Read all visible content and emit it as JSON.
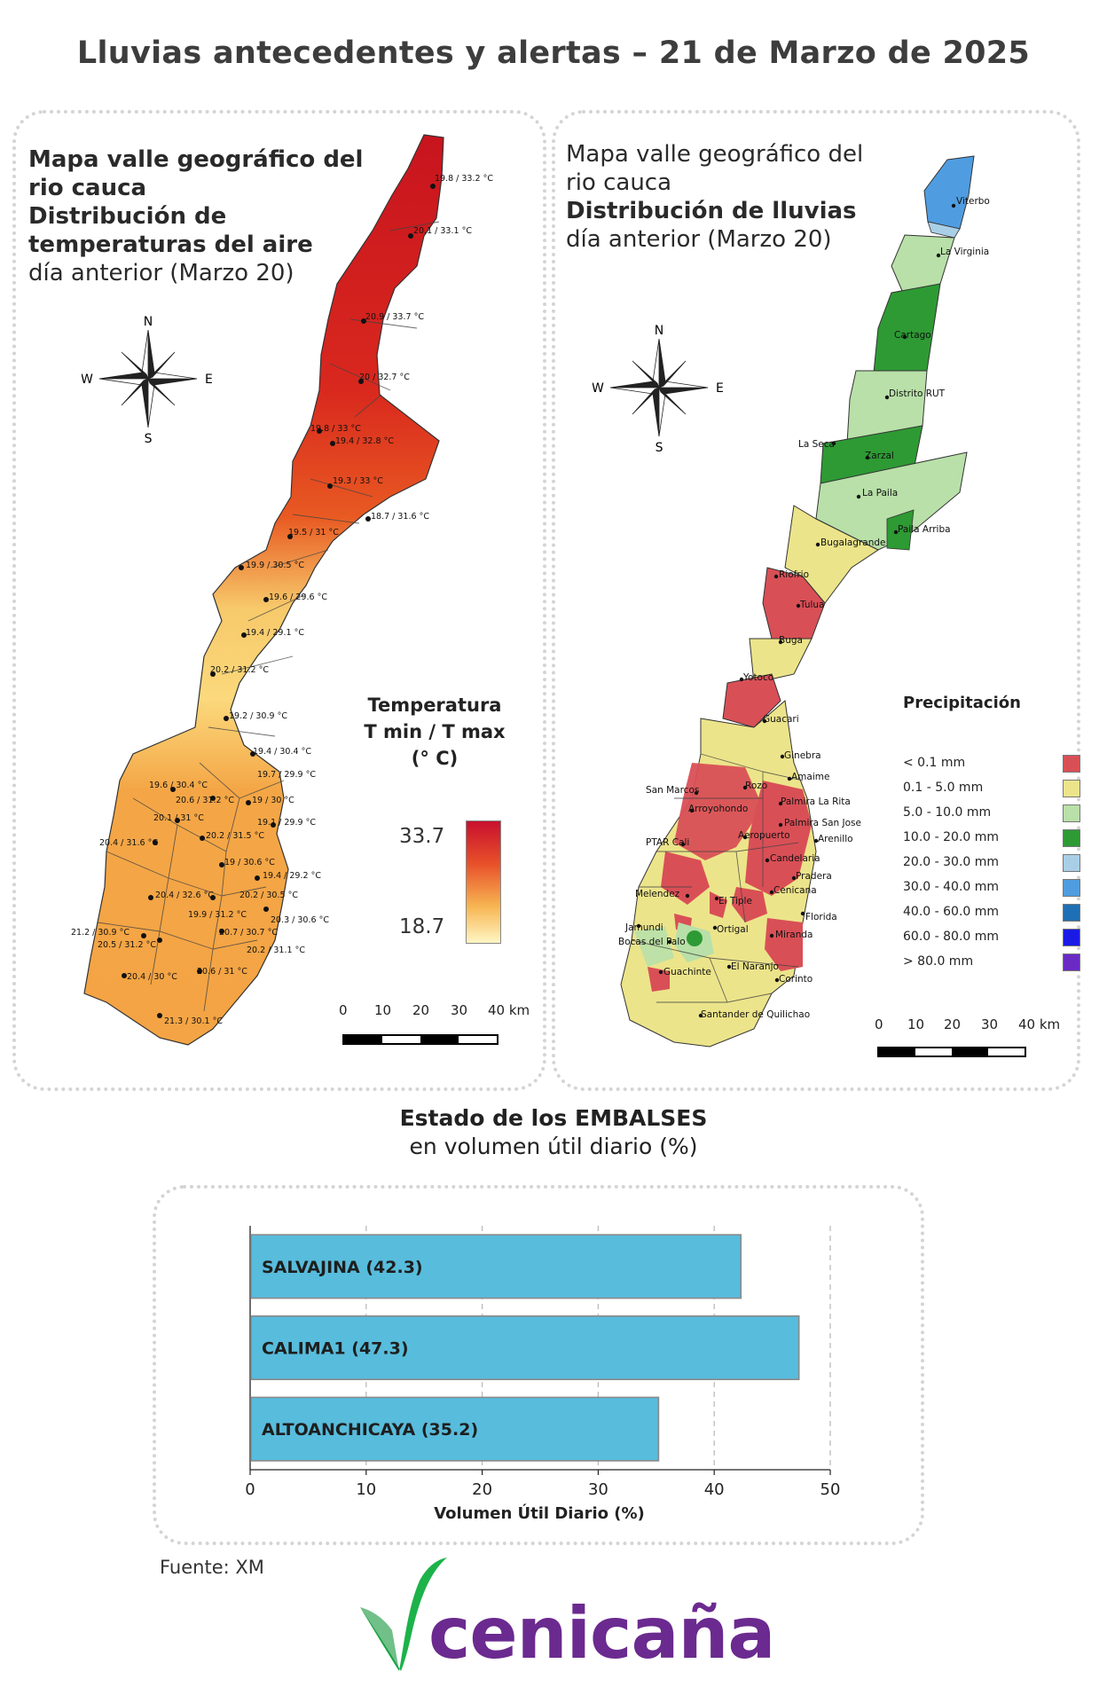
{
  "main_title": "Lluvias antecedentes y alertas – 21 de Marzo de 2025",
  "temp_map": {
    "title_lines": [
      "Mapa valle geográfico del",
      "rio cauca",
      "Distribución de",
      "temperaturas del aire"
    ],
    "subtitle": "día anterior (Marzo 20)",
    "legend": {
      "title_lines": [
        "Temperatura",
        "T min / T max",
        "(° C)"
      ],
      "max": "33.7",
      "min": "18.7",
      "max_color": "#c8102e",
      "min_color": "#fff6c4"
    },
    "stations": [
      "19.8 / 33.2 °C",
      "20.1 / 33.1 °C",
      "20.9 / 33.7 °C",
      "20 / 32.7 °C",
      "19.8 / 33 °C",
      "19.4 / 32.8 °C",
      "19.3 / 33 °C",
      "18.7 / 31.6 °C",
      "19.5 / 31 °C",
      "19.9 / 30.5 °C",
      "19.6 / 29.6 °C",
      "19.4 / 29.1 °C",
      "20.2 / 31.2 °C",
      "19.2 / 30.9 °C",
      "19.4 / 30.4 °C",
      "19.6 / 30.4 °C",
      "19.7 / 29.9 °C",
      "20.6 / 31.2 °C",
      "19 / 30 °C",
      "20.1 / 31 °C",
      "19.1 / 29.9 °C",
      "20.4 / 31.6 °C",
      "20.2 / 31.5 °C",
      "19 / 30.6 °C",
      "19.4 / 29.2 °C",
      "20.4 / 32.6 °C",
      "20.2 / 30.5 °C",
      "19.9 / 31.2 °C",
      "20.3 / 30.6 °C",
      "21.2 / 30.9 °C",
      "20.7 / 30.7 °C",
      "20.5 / 31.2 °C",
      "20.2 / 31.1 °C",
      "20.6 / 31 °C",
      "20.4 / 30 °C",
      "21.3 / 30.1 °C"
    ]
  },
  "rain_map": {
    "title_lines": [
      "Mapa valle geográfico del",
      "rio cauca",
      "Distribución de lluvias"
    ],
    "subtitle": "día anterior (Marzo 20)",
    "legend": {
      "title": "Precipitación",
      "items": [
        {
          "label": "< 0.1 mm",
          "color": "#d94f56"
        },
        {
          "label": "0.1 - 5.0 mm",
          "color": "#ece48a"
        },
        {
          "label": "5.0 - 10.0 mm",
          "color": "#b8e0a8"
        },
        {
          "label": "10.0 - 20.0 mm",
          "color": "#2e9a34"
        },
        {
          "label": "20.0 - 30.0 mm",
          "color": "#a9cfe6"
        },
        {
          "label": "30.0 - 40.0 mm",
          "color": "#4f9de0"
        },
        {
          "label": "40.0 - 60.0 mm",
          "color": "#1f6fb5"
        },
        {
          "label": "60.0 - 80.0 mm",
          "color": "#1a1ae6"
        },
        {
          "label": "> 80.0 mm",
          "color": "#6a2ac4"
        }
      ]
    },
    "places": [
      "Viterbo",
      "La Virginia",
      "Cartago",
      "Distrito RUT",
      "La Seca",
      "Zarzal",
      "La Paila",
      "Paila Arriba",
      "Bugalagrande",
      "Riofrio",
      "Tulua",
      "Buga",
      "Yotoco",
      "Guacari",
      "Ginebra",
      "Amaime",
      "San Marcos",
      "Rozo",
      "Palmira La Rita",
      "Arroyohondo",
      "Palmira San Jose",
      "Aeropuerto",
      "Arenillo",
      "PTAR Cali",
      "Candelaria",
      "Pradera",
      "Melendez",
      "Cenicana",
      "El Tiple",
      "Florida",
      "Jamundi",
      "Ortigal",
      "Bocas del Palo",
      "Miranda",
      "El Naranjo",
      "Guachinte",
      "Corinto",
      "Santander de Quilichao"
    ]
  },
  "scale": {
    "labels": [
      "0",
      "10",
      "20",
      "30",
      "40 km"
    ]
  },
  "embalses": {
    "title": "Estado de los EMBALSES",
    "subtitle": "en volumen útil diario (%)",
    "source": "Fuente: XM"
  },
  "chart_data": {
    "type": "bar",
    "orientation": "horizontal",
    "categories": [
      "SALVAJINA (42.3)",
      "CALIMA1 (47.3)",
      "ALTOANCHICAYA (35.2)"
    ],
    "values": [
      42.3,
      47.3,
      35.2
    ],
    "xlabel": "Volumen Útil Diario (%)",
    "xlim": [
      0,
      50
    ],
    "xticks": [
      0,
      10,
      20,
      30,
      40,
      50
    ],
    "grid": true,
    "bar_color": "#58bcdc"
  },
  "logo": {
    "text": "cenicaña",
    "color": "#6b2a8f",
    "accent": "#1db24a"
  }
}
